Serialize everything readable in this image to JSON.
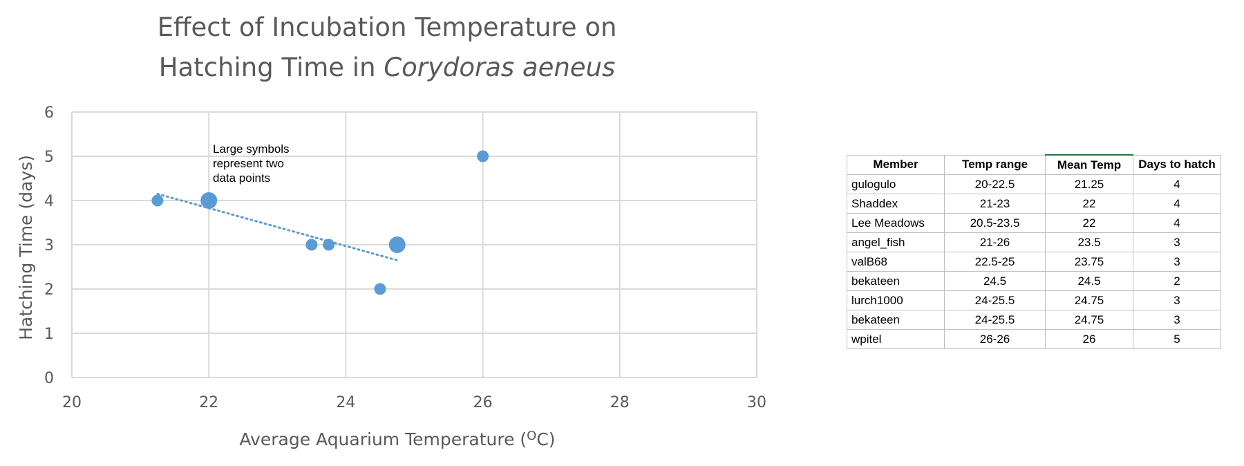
{
  "chart_data": {
    "type": "scatter",
    "title_line1": "Effect of Incubation Temperature on",
    "title_line2_prefix": "Hatching Time in ",
    "title_line2_italic": "Corydoras aeneus",
    "xlabel_prefix": "Average Aquarium Temperature (",
    "xlabel_degree": "O",
    "xlabel_suffix": "C)",
    "ylabel": "Hatching Time (days)",
    "xlim": [
      20,
      30
    ],
    "ylim": [
      0,
      6
    ],
    "x_ticks": [
      "20",
      "22",
      "24",
      "26",
      "28",
      "30"
    ],
    "y_ticks": [
      "0",
      "1",
      "2",
      "3",
      "4",
      "5",
      "6"
    ],
    "grid": true,
    "marker_color": "#5b9bd5",
    "points": [
      {
        "x": 21.25,
        "y": 4,
        "count": 1
      },
      {
        "x": 22,
        "y": 4,
        "count": 2
      },
      {
        "x": 23.5,
        "y": 3,
        "count": 1
      },
      {
        "x": 23.75,
        "y": 3,
        "count": 1
      },
      {
        "x": 24.5,
        "y": 2,
        "count": 1
      },
      {
        "x": 24.75,
        "y": 3,
        "count": 2
      },
      {
        "x": 26,
        "y": 5,
        "count": 1
      }
    ],
    "trendline": {
      "type": "linear",
      "style": "dotted",
      "x_start": 21.25,
      "y_start": 4.15,
      "x_end": 24.75,
      "y_end": 2.65
    },
    "annotation": [
      "Large symbols",
      "represent two",
      "data points"
    ]
  },
  "table": {
    "headers": [
      "Member",
      "Temp range",
      "Mean Temp",
      "Days to hatch"
    ],
    "rows": [
      [
        "gulogulo",
        "20-22.5",
        "21.25",
        "4"
      ],
      [
        "Shaddex",
        "21-23",
        "22",
        "4"
      ],
      [
        "Lee Meadows",
        "20.5-23.5",
        "22",
        "4"
      ],
      [
        "angel_fish",
        "21-26",
        "23.5",
        "3"
      ],
      [
        "valB68",
        "22.5-25",
        "23.75",
        "3"
      ],
      [
        "bekateen",
        "24.5",
        "24.5",
        "2"
      ],
      [
        "lurch1000",
        "24-25.5",
        "24.75",
        "3"
      ],
      [
        "bekateen",
        "24-25.5",
        "24.75",
        "3"
      ],
      [
        "wpitel",
        "26-26",
        "26",
        "5"
      ]
    ]
  }
}
